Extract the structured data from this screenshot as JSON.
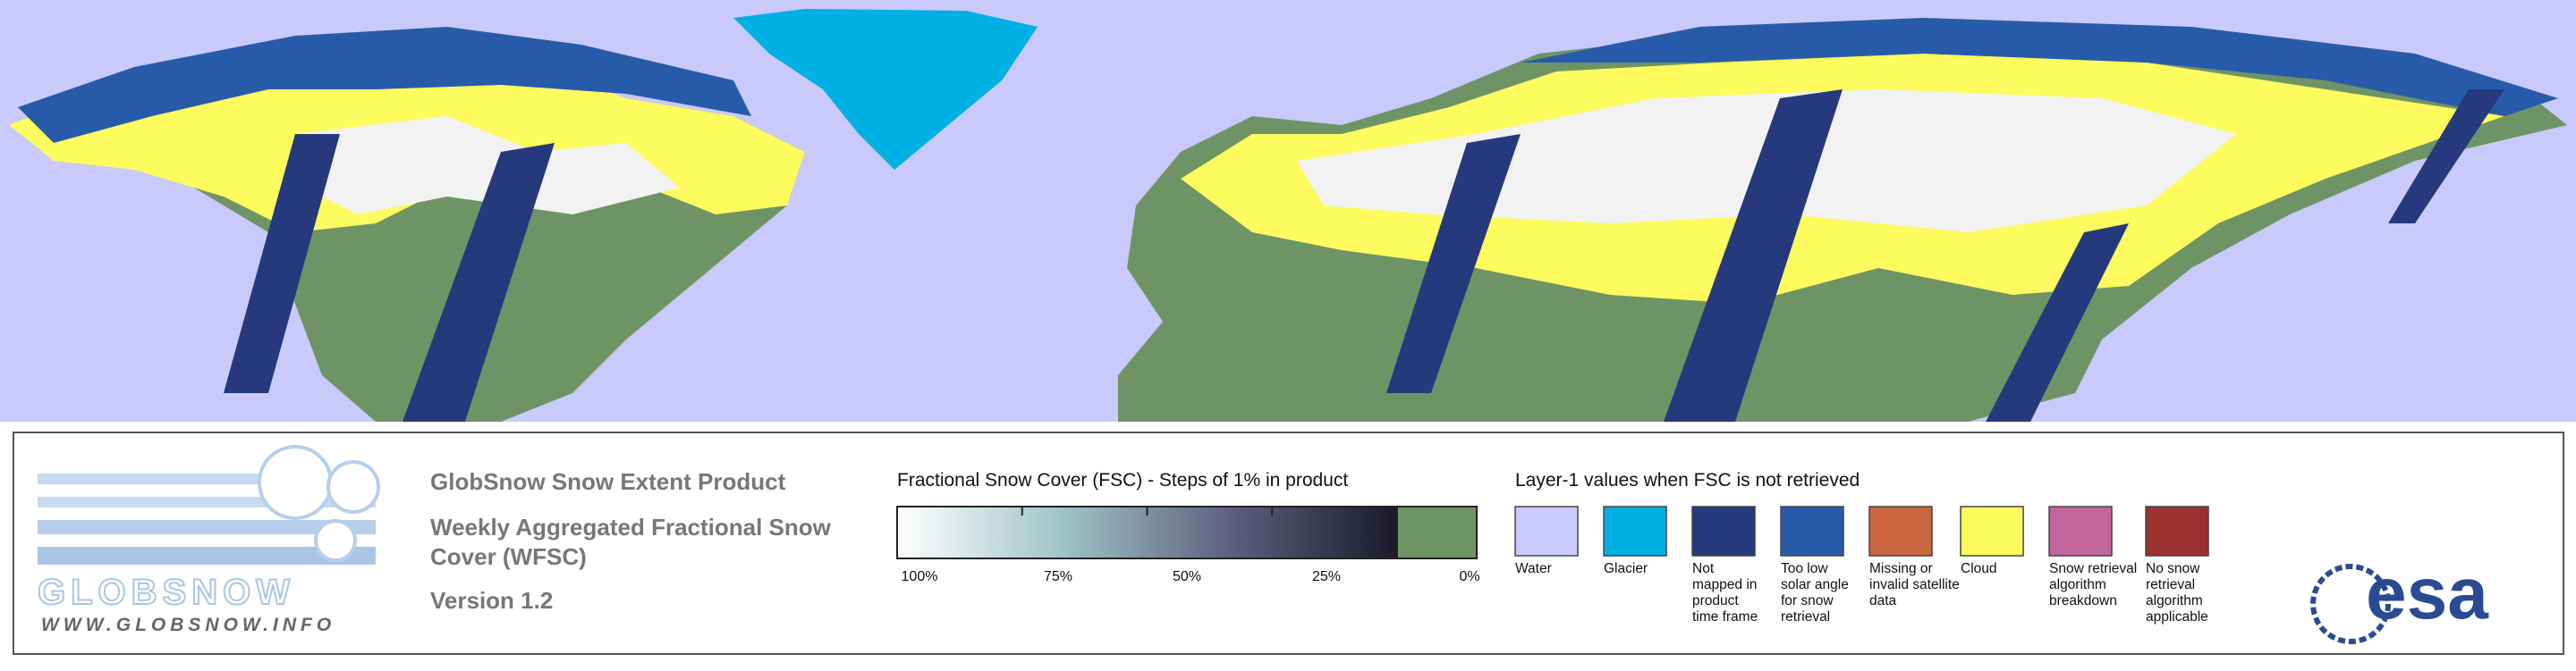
{
  "logo": {
    "name": "GLOBSNOW",
    "url": "WWW.GLOBSNOW.INFO"
  },
  "product": {
    "title": "GlobSnow Snow Extent Product",
    "subtitle_lines": [
      "Weekly Aggregated Fractional Snow",
      "Cover (WFSC)"
    ],
    "version": "Version 1.2"
  },
  "fsc_legend": {
    "title": "Fractional Snow Cover (FSC) - Steps of 1% in product",
    "tick_labels": [
      "100%",
      "75%",
      "50%",
      "25%",
      "0%"
    ],
    "gradient_colors": [
      "#ffffff",
      "#9fc3c6",
      "#5e5f7f",
      "#1a1a2a"
    ],
    "zero_color": "#6e9466"
  },
  "layer_legend": {
    "title": "Layer-1 values when FSC is not retrieved",
    "items": [
      {
        "color": "#cac9fc",
        "label_lines": [
          "Water"
        ]
      },
      {
        "color": "#00b0e4",
        "label_lines": [
          "Glacier"
        ]
      },
      {
        "color": "#26397d",
        "label_lines": [
          "Not",
          "mapped in",
          "product",
          "time frame"
        ]
      },
      {
        "color": "#275baa",
        "label_lines": [
          "Too low",
          "solar angle",
          "for snow",
          "retrieval"
        ]
      },
      {
        "color": "#cb6540",
        "label_lines": [
          "Missing or",
          "invalid satellite",
          "data"
        ]
      },
      {
        "color": "#fdfb5e",
        "label_lines": [
          "Cloud"
        ]
      },
      {
        "color": "#c2669e",
        "label_lines": [
          "Snow retrieval",
          "algorithm",
          "breakdown"
        ]
      },
      {
        "color": "#9a3030",
        "label_lines": [
          "No snow",
          "retrieval",
          "algorithm",
          "applicable"
        ]
      }
    ]
  },
  "agency": "esa"
}
